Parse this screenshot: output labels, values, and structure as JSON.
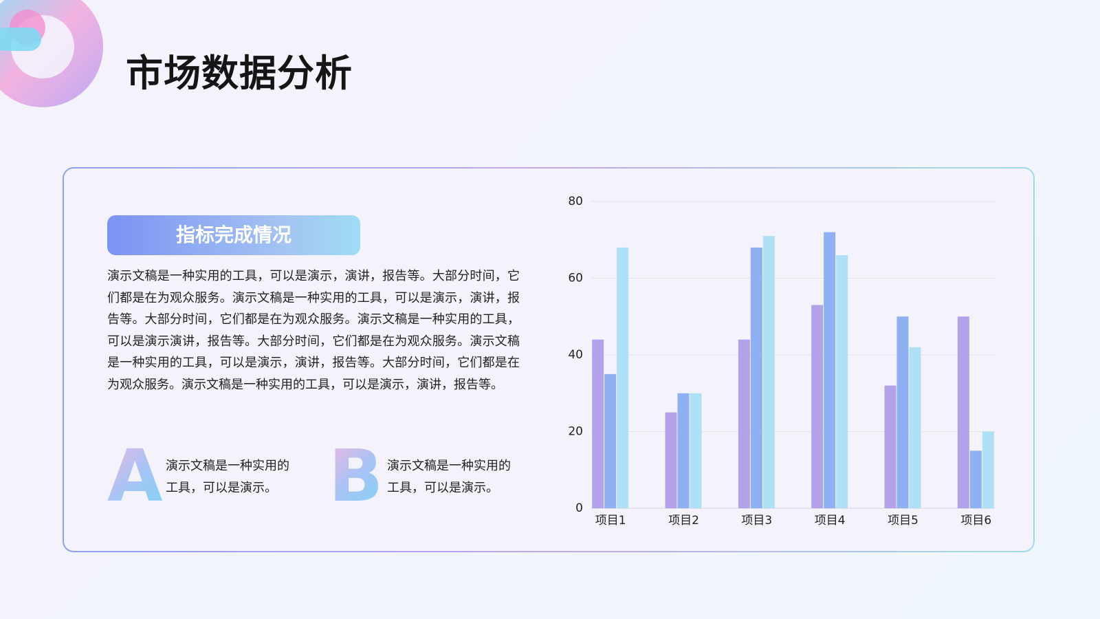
{
  "title": "市场数据分析",
  "panel": {
    "heading": "指标完成情况",
    "paragraph": "演示文稿是一种实用的工具，可以是演示，演讲，报告等。大部分时间，它们都是在为观众服务。演示文稿是一种实用的工具，可以是演示，演讲，报告等。大部分时间，它们都是在为观众服务。演示文稿是一种实用的工具，可以是演示演讲，报告等。大部分时间，它们都是在为观众服务。演示文稿是一种实用的工具，可以是演示，演讲，报告等。大部分时间，它们都是在为观众服务。演示文稿是一种实用的工具，可以是演示，演讲，报告等。",
    "items": [
      {
        "letter": "A",
        "text": "演示文稿是一种实用的工具，可以是演示。"
      },
      {
        "letter": "B",
        "text": "演示文稿是一种实用的工具，可以是演示。"
      }
    ]
  },
  "chart_data": {
    "type": "bar",
    "categories": [
      "项目1",
      "项目2",
      "项目3",
      "项目4",
      "项目5",
      "项目6"
    ],
    "series": [
      {
        "color": "#b3a2ea",
        "values": [
          44,
          25,
          44,
          53,
          32,
          50
        ]
      },
      {
        "color": "#8fb0f3",
        "values": [
          35,
          30,
          68,
          72,
          50,
          15
        ]
      },
      {
        "color": "#aee0f6",
        "values": [
          68,
          30,
          71,
          66,
          42,
          20
        ]
      }
    ],
    "ylim": [
      0,
      80
    ],
    "yticks": [
      0,
      20,
      40,
      60,
      80
    ],
    "grid": true
  }
}
